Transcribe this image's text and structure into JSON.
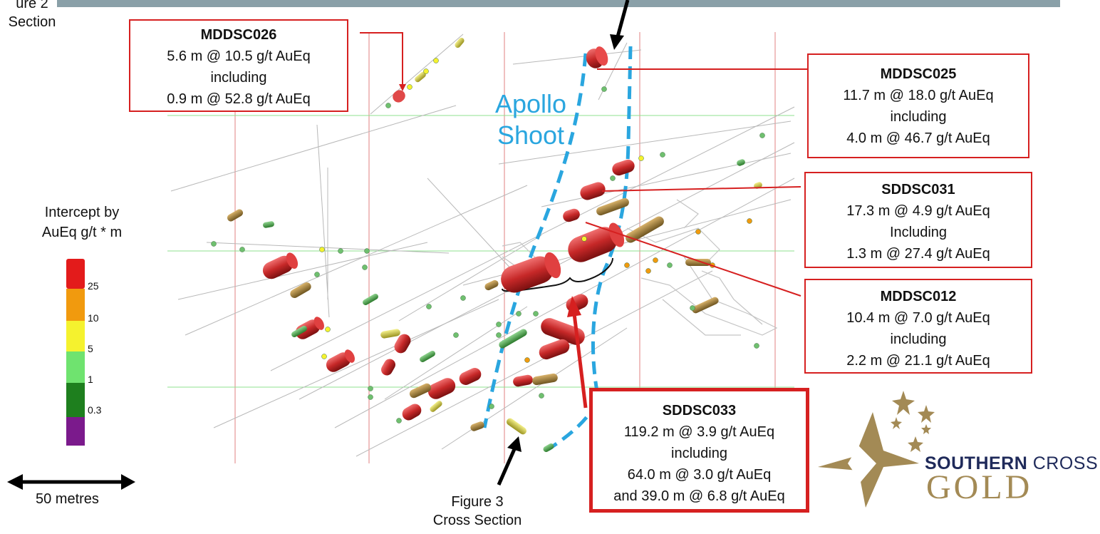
{
  "top_left_label": {
    "line1": "ure 2",
    "line2": "Section"
  },
  "shoot_label": {
    "line1": "Apollo",
    "line2": "Shoot"
  },
  "legend": {
    "title_line1": "Intercept by",
    "title_line2": "AuEq g/t * m",
    "ticks": [
      "25",
      "10",
      "5",
      "1",
      "0.3"
    ],
    "colors": [
      "#7b1a8c",
      "#1e7f1e",
      "#6fe36f",
      "#f5f22e",
      "#f19a0e",
      "#e31b1b"
    ]
  },
  "scale_bar": {
    "label": "50 metres"
  },
  "bottom_label": {
    "line1": "Figure 3",
    "line2": "Cross Section"
  },
  "callouts": [
    {
      "id": "MDDSC026",
      "title": "MDDSC026",
      "lines": [
        "5.6 m @ 10.5 g/t AuEq",
        "including",
        "0.9 m @ 52.8 g/t AuEq"
      ]
    },
    {
      "id": "MDDSC025",
      "title": "MDDSC025",
      "lines": [
        "11.7 m @ 18.0 g/t AuEq",
        "including",
        "4.0 m @ 46.7 g/t AuEq"
      ]
    },
    {
      "id": "SDDSC031",
      "title": "SDDSC031",
      "lines": [
        "17.3 m @ 4.9 g/t AuEq",
        "Including",
        "1.3 m @ 27.4 g/t AuEq"
      ]
    },
    {
      "id": "MDDSC012",
      "title": "MDDSC012",
      "lines": [
        "10.4 m @ 7.0 g/t AuEq",
        "including",
        "2.2 m @ 21.1 g/t AuEq"
      ]
    },
    {
      "id": "SDDSC033",
      "title": "SDDSC033",
      "lines": [
        "119.2 m @ 3.9 g/t AuEq",
        "including",
        "64.0 m @ 3.0 g/t AuEq",
        "and 39.0 m @ 6.8 g/t AuEq"
      ]
    }
  ],
  "logo": {
    "word1": "SOUTHERN",
    "word2": "CROSS",
    "word3": "GOLD"
  },
  "colors": {
    "callout_border": "#d62020",
    "shoot_outline": "#2aa6df",
    "logo_navy": "#1f2a5a",
    "logo_gold": "#a38a55"
  }
}
